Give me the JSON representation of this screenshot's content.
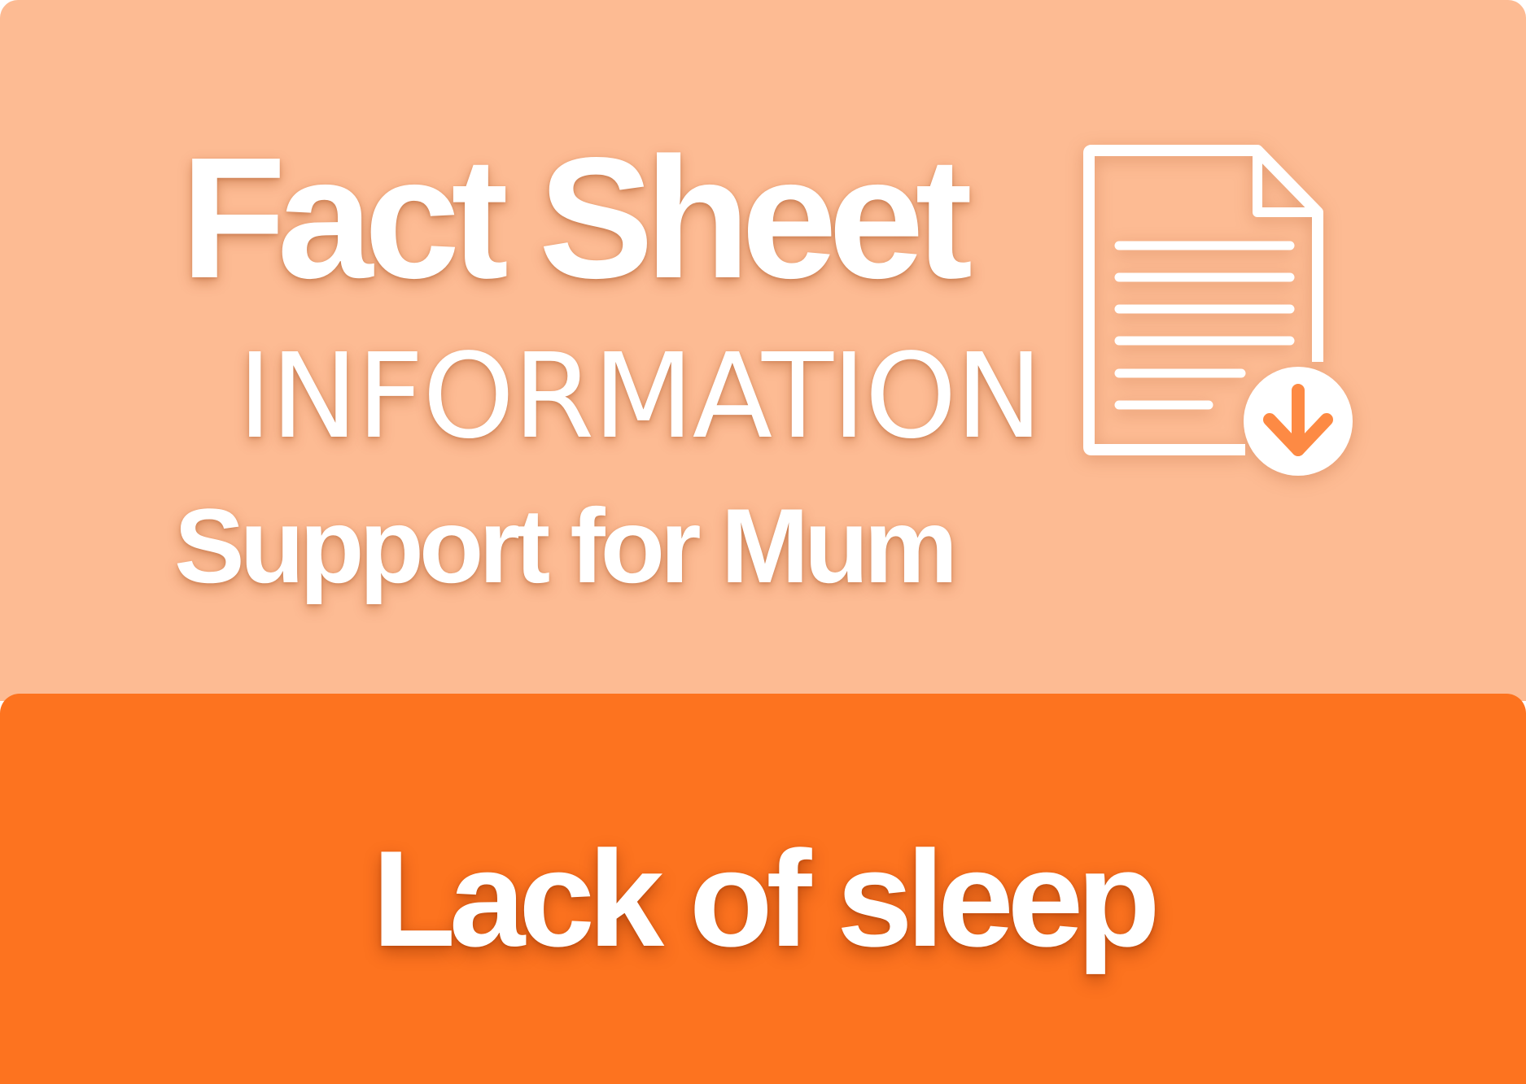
{
  "header": {
    "title": "Fact Sheet",
    "subtitle": "INFORMATION",
    "topic": "Support for Mum"
  },
  "banner": {
    "heading": "Lack of sleep"
  },
  "icons": {
    "document": "document-download-icon"
  },
  "colors": {
    "top_background": "#fdbb93",
    "bottom_background": "#fd731f",
    "text": "#ffffff",
    "icon_arrow": "#fd8a44"
  }
}
